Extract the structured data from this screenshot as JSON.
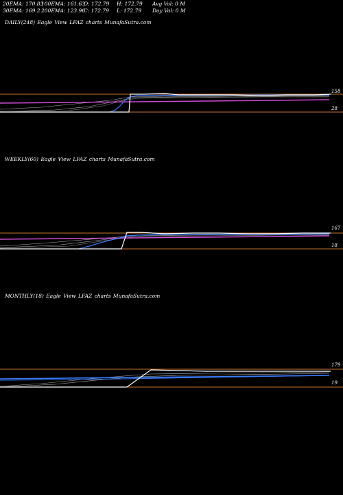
{
  "header": {
    "row1": [
      {
        "key": "ema20",
        "text": "20EMA: 170.83"
      },
      {
        "key": "ema100",
        "text": "100EMA: 161.63"
      },
      {
        "key": "open",
        "text": "O: 172.79"
      },
      {
        "key": "high",
        "text": "H: 172.79"
      },
      {
        "key": "avgvol",
        "text": "Avg Vol: 0  M"
      }
    ],
    "row2": [
      {
        "key": "ema30",
        "text": "30EMA: 169.2"
      },
      {
        "key": "ema200",
        "text": "200EMA: 123.96"
      },
      {
        "key": "close",
        "text": "C: 172.79"
      },
      {
        "key": "low",
        "text": "L: 172.79"
      },
      {
        "key": "dayvol",
        "text": "Day Vol: 0  M"
      }
    ]
  },
  "panels": [
    {
      "title": "DAILY(248) Eagle   View  LFAZ charts MunafaSutra.com",
      "price_label": "158",
      "level_label": "28"
    },
    {
      "title": "WEEKLY(60) Eagle   View  LFAZ charts MunafaSutra.com",
      "price_label": "167",
      "level_label": "18"
    },
    {
      "title": "MONTHLY(18) Eagle   View  LFAZ charts MunafaSutra.com",
      "price_label": "179",
      "level_label": "19"
    }
  ],
  "colors": {
    "background": "#000000",
    "price": "#ffffff",
    "ema_blue": "#3a7bff",
    "ema_magenta": "#d24bd6",
    "level_line": "#c8732e",
    "ema_gray": "#b0b0b0"
  },
  "chart_data": [
    {
      "type": "line",
      "timeframe": "daily",
      "price_label": 158,
      "level_label": 28
    },
    {
      "type": "line",
      "timeframe": "weekly",
      "price_label": 167,
      "level_label": 18
    },
    {
      "type": "line",
      "timeframe": "monthly",
      "price_label": 179,
      "level_label": 19
    }
  ]
}
